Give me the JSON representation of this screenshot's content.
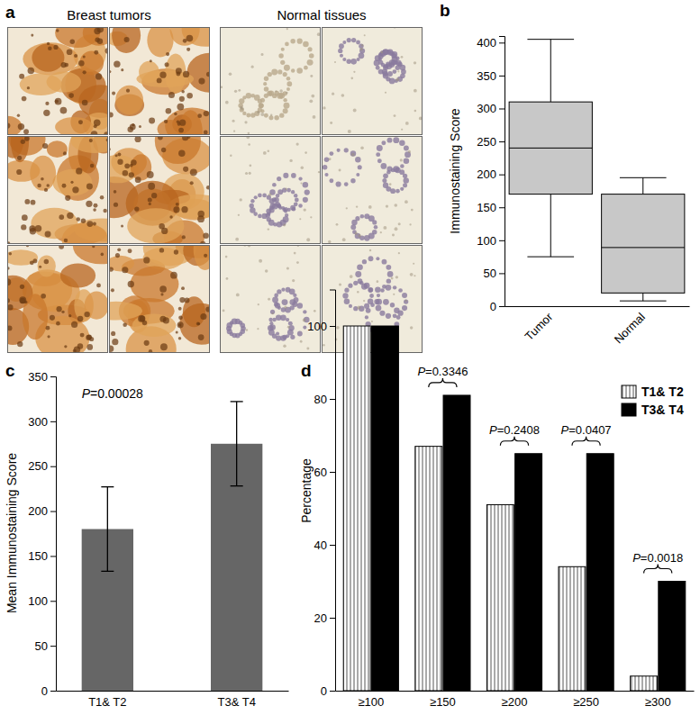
{
  "chart_data": [
    {
      "type": "image_grid",
      "title": "a",
      "columns": [
        "Breast tumors",
        "Normal tissues"
      ]
    },
    {
      "type": "box",
      "title": "b",
      "categories": [
        "Tumor",
        "Normal"
      ],
      "boxes": [
        {
          "min": 75,
          "q1": 170,
          "median": 240,
          "q3": 310,
          "max": 405
        },
        {
          "min": 8,
          "q1": 20,
          "median": 89,
          "q3": 170,
          "max": 195
        }
      ],
      "y_label": "Immunostaining Score",
      "ylim": [
        0,
        410
      ],
      "yticks": [
        0,
        50,
        100,
        150,
        200,
        250,
        300,
        350,
        400
      ],
      "color": "#c8c8c8"
    },
    {
      "type": "bar",
      "title": "c",
      "categories": [
        "T1& T2",
        "T3& T4"
      ],
      "values": [
        180,
        275
      ],
      "errors": [
        47,
        47
      ],
      "y_label": "Mean Immunostaining Score",
      "ylim": [
        0,
        350
      ],
      "yticks": [
        0,
        50,
        100,
        150,
        200,
        250,
        300,
        350
      ],
      "color": "#666666",
      "annotations": [
        {
          "text": "P=0.00028"
        }
      ]
    },
    {
      "type": "bar",
      "title": "d",
      "categories": [
        "≥100",
        "≥150",
        "≥200",
        "≥250",
        "≥300"
      ],
      "series": [
        {
          "name": "T1& T2",
          "color": "#ffffff",
          "marker": "hatch",
          "values": [
            100,
            67,
            51,
            34,
            4
          ]
        },
        {
          "name": "T3& T4",
          "color": "#000000",
          "values": [
            100,
            81,
            65,
            65,
            30
          ]
        }
      ],
      "y_label": "Percentage",
      "ylim": [
        0,
        110
      ],
      "yticks": [
        0,
        20,
        40,
        60,
        80,
        100
      ],
      "legend": "upper right",
      "annotations": [
        {
          "x": "≥150",
          "text": "P=0.3346"
        },
        {
          "x": "≥200",
          "text": "P=0.2408"
        },
        {
          "x": "≥250",
          "text": "P=0.0407"
        },
        {
          "x": "≥300",
          "text": "P=0.0018"
        }
      ]
    }
  ]
}
